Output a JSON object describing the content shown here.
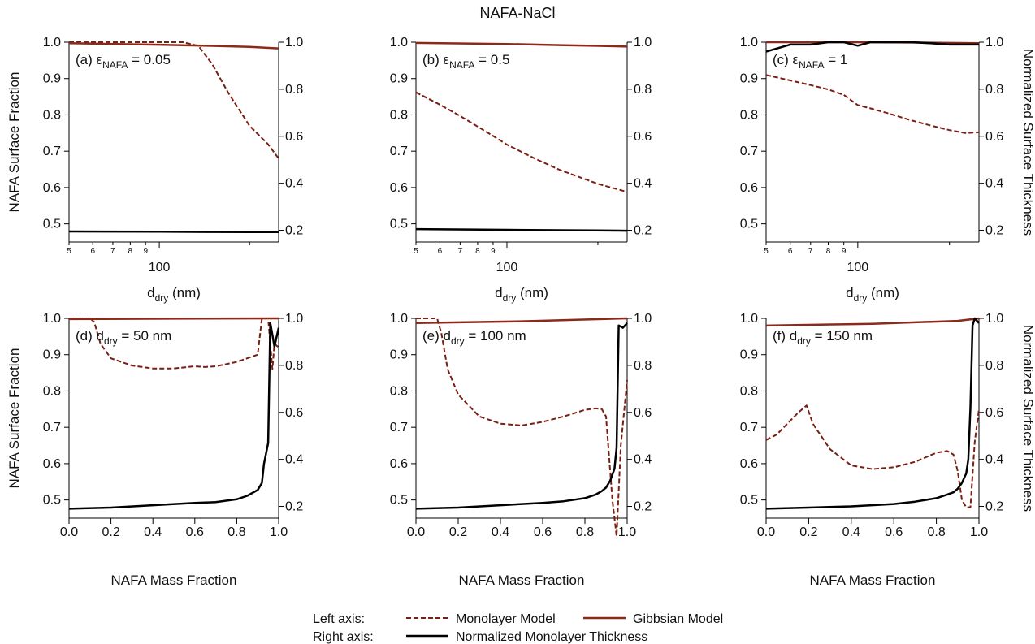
{
  "figure_title": "NAFA-NaCl",
  "colors": {
    "monolayer": "#7a1f12",
    "gibbsian": "#8b2a1a",
    "thickness": "#000000"
  },
  "legend": {
    "left_axis_label": "Left axis:",
    "right_axis_label": "Right axis:",
    "monolayer": "Monolayer Model",
    "gibbsian": "Gibbsian Model",
    "thickness": "Normalized Monolayer Thickness"
  },
  "chart_data": [
    {
      "id": "a",
      "type": "line",
      "label_prefix": "(a) ε",
      "label_sub": "NAFA",
      "label_suffix": " = 0.05",
      "xlabel_main": "d",
      "xlabel_sub": "dry",
      "xlabel_suffix": " (nm)",
      "ylabel_left": "NAFA Surface Fraction",
      "ylabel_right": "",
      "xscale": "log",
      "xlim": [
        50,
        250
      ],
      "xticks_major": [
        {
          "v": 100,
          "label": "100"
        }
      ],
      "xticks_minor": [
        {
          "v": 50,
          "label": "5"
        },
        {
          "v": 60,
          "label": "6"
        },
        {
          "v": 70,
          "label": "7"
        },
        {
          "v": 80,
          "label": "8"
        },
        {
          "v": 90,
          "label": "9"
        },
        {
          "v": 200,
          "label": ""
        }
      ],
      "ylim_left": [
        0.45,
        1.0
      ],
      "yticks_left": [
        "0.5",
        "0.6",
        "0.7",
        "0.8",
        "0.9",
        "1.0"
      ],
      "ylim_right": [
        0.15,
        1.0
      ],
      "yticks_right": [
        "0.2",
        "0.4",
        "0.6",
        "0.8",
        "1.0"
      ],
      "series": [
        {
          "key": "monolayer",
          "axis": "left",
          "style": "dashed",
          "x": [
            50,
            80,
            120,
            135,
            150,
            170,
            200,
            230,
            250
          ],
          "y": [
            1.0,
            1.0,
            1.0,
            0.99,
            0.94,
            0.86,
            0.77,
            0.72,
            0.68
          ]
        },
        {
          "key": "gibbsian",
          "axis": "left",
          "style": "solid",
          "x": [
            50,
            100,
            150,
            200,
            250
          ],
          "y": [
            0.997,
            0.993,
            0.99,
            0.987,
            0.983
          ]
        },
        {
          "key": "thickness",
          "axis": "right",
          "style": "solid",
          "x": [
            50,
            100,
            150,
            200,
            250
          ],
          "y": [
            0.195,
            0.194,
            0.193,
            0.192,
            0.192
          ]
        }
      ]
    },
    {
      "id": "b",
      "type": "line",
      "label_prefix": "(b) ε",
      "label_sub": "NAFA",
      "label_suffix": " = 0.5",
      "xlabel_main": "d",
      "xlabel_sub": "dry",
      "xlabel_suffix": " (nm)",
      "ylabel_left": "",
      "ylabel_right": "",
      "xscale": "log",
      "xlim": [
        50,
        250
      ],
      "xticks_major": [
        {
          "v": 100,
          "label": "100"
        }
      ],
      "xticks_minor": [
        {
          "v": 50,
          "label": "5"
        },
        {
          "v": 60,
          "label": "6"
        },
        {
          "v": 70,
          "label": "7"
        },
        {
          "v": 80,
          "label": "8"
        },
        {
          "v": 90,
          "label": "9"
        },
        {
          "v": 200,
          "label": ""
        }
      ],
      "ylim_left": [
        0.45,
        1.0
      ],
      "yticks_left": [
        "0.5",
        "0.6",
        "0.7",
        "0.8",
        "0.9",
        "1.0"
      ],
      "ylim_right": [
        0.15,
        1.0
      ],
      "yticks_right": [
        "0.2",
        "0.4",
        "0.6",
        "0.8",
        "1.0"
      ],
      "series": [
        {
          "key": "monolayer",
          "axis": "left",
          "style": "dashed",
          "x": [
            50,
            60,
            70,
            80,
            90,
            100,
            125,
            150,
            200,
            250
          ],
          "y": [
            0.862,
            0.828,
            0.797,
            0.768,
            0.742,
            0.718,
            0.678,
            0.648,
            0.61,
            0.588
          ]
        },
        {
          "key": "gibbsian",
          "axis": "left",
          "style": "solid",
          "x": [
            50,
            100,
            150,
            200,
            250
          ],
          "y": [
            0.998,
            0.995,
            0.992,
            0.99,
            0.988
          ]
        },
        {
          "key": "thickness",
          "axis": "right",
          "style": "solid",
          "x": [
            50,
            100,
            150,
            200,
            250
          ],
          "y": [
            0.205,
            0.202,
            0.2,
            0.199,
            0.198
          ]
        }
      ]
    },
    {
      "id": "c",
      "type": "line",
      "label_prefix": "(c) ε",
      "label_sub": "NAFA",
      "label_suffix": " = 1",
      "xlabel_main": "d",
      "xlabel_sub": "dry",
      "xlabel_suffix": " (nm)",
      "ylabel_left": "",
      "ylabel_right": "Normalized Surface Thickness",
      "xscale": "log",
      "xlim": [
        50,
        250
      ],
      "xticks_major": [
        {
          "v": 100,
          "label": "100"
        }
      ],
      "xticks_minor": [
        {
          "v": 50,
          "label": "5"
        },
        {
          "v": 60,
          "label": "6"
        },
        {
          "v": 70,
          "label": "7"
        },
        {
          "v": 80,
          "label": "8"
        },
        {
          "v": 90,
          "label": "9"
        },
        {
          "v": 200,
          "label": ""
        }
      ],
      "ylim_left": [
        0.45,
        1.0
      ],
      "yticks_left": [
        "0.5",
        "0.6",
        "0.7",
        "0.8",
        "0.9",
        "1.0"
      ],
      "ylim_right": [
        0.15,
        1.0
      ],
      "yticks_right": [
        "0.2",
        "0.4",
        "0.6",
        "0.8",
        "1.0"
      ],
      "series": [
        {
          "key": "monolayer",
          "axis": "left",
          "style": "dashed",
          "x": [
            50,
            60,
            70,
            80,
            90,
            100,
            110,
            125,
            150,
            175,
            200,
            225,
            250
          ],
          "y": [
            0.91,
            0.895,
            0.882,
            0.87,
            0.855,
            0.827,
            0.818,
            0.805,
            0.785,
            0.77,
            0.758,
            0.75,
            0.752
          ]
        },
        {
          "key": "gibbsian",
          "axis": "left",
          "style": "solid",
          "x": [
            50,
            100,
            150,
            200,
            250
          ],
          "y": [
            1.0,
            1.0,
            0.999,
            0.998,
            0.997
          ]
        },
        {
          "key": "thickness",
          "axis": "right",
          "style": "solid",
          "x": [
            50,
            60,
            70,
            80,
            90,
            100,
            110,
            125,
            150,
            175,
            200,
            225,
            250
          ],
          "y": [
            0.96,
            0.99,
            0.99,
            1.0,
            1.0,
            0.985,
            1.0,
            1.0,
            1.0,
            0.995,
            0.99,
            0.99,
            0.99
          ]
        }
      ]
    },
    {
      "id": "d",
      "type": "line",
      "label_prefix": "(d) d",
      "label_sub": "dry",
      "label_suffix": " = 50 nm",
      "xlabel_main": "NAFA Mass Fraction",
      "xlabel_sub": "",
      "xlabel_suffix": "",
      "ylabel_left": "NAFA Surface Fraction",
      "ylabel_right": "",
      "xscale": "linear",
      "xlim": [
        0,
        1
      ],
      "xticks_major": [
        {
          "v": 0,
          "label": "0.0"
        },
        {
          "v": 0.2,
          "label": "0.2"
        },
        {
          "v": 0.4,
          "label": "0.4"
        },
        {
          "v": 0.6,
          "label": "0.6"
        },
        {
          "v": 0.8,
          "label": "0.8"
        },
        {
          "v": 1.0,
          "label": "1.0"
        }
      ],
      "xticks_minor": [],
      "ylim_left": [
        0.45,
        1.0
      ],
      "yticks_left": [
        "0.5",
        "0.6",
        "0.7",
        "0.8",
        "0.9",
        "1.0"
      ],
      "ylim_right": [
        0.15,
        1.0
      ],
      "yticks_right": [
        "0.2",
        "0.4",
        "0.6",
        "0.8",
        "1.0"
      ],
      "series": [
        {
          "key": "monolayer",
          "axis": "left",
          "style": "dashed",
          "x": [
            0.0,
            0.1,
            0.12,
            0.15,
            0.2,
            0.3,
            0.4,
            0.5,
            0.6,
            0.65,
            0.7,
            0.8,
            0.85,
            0.9,
            0.92,
            0.95,
            0.97,
            0.98,
            1.0
          ],
          "y": [
            1.0,
            1.0,
            0.99,
            0.93,
            0.89,
            0.87,
            0.862,
            0.862,
            0.868,
            0.866,
            0.868,
            0.88,
            0.89,
            0.9,
            1.0,
            1.0,
            0.86,
            0.93,
            0.92
          ]
        },
        {
          "key": "gibbsian",
          "axis": "left",
          "style": "solid",
          "x": [
            0.0,
            0.5,
            1.0
          ],
          "y": [
            0.998,
            0.999,
            1.0
          ]
        },
        {
          "key": "thickness",
          "axis": "right",
          "style": "solid",
          "x": [
            0.0,
            0.2,
            0.4,
            0.6,
            0.7,
            0.8,
            0.85,
            0.9,
            0.92,
            0.93,
            0.95,
            0.96,
            0.97,
            0.98,
            1.0
          ],
          "y": [
            0.19,
            0.195,
            0.205,
            0.215,
            0.218,
            0.23,
            0.245,
            0.27,
            0.3,
            0.38,
            0.47,
            0.98,
            0.93,
            0.88,
            0.96
          ]
        }
      ]
    },
    {
      "id": "e",
      "type": "line",
      "label_prefix": "(e) d",
      "label_sub": "dry",
      "label_suffix": " = 100 nm",
      "xlabel_main": "NAFA Mass Fraction",
      "xlabel_sub": "",
      "xlabel_suffix": "",
      "ylabel_left": "",
      "ylabel_right": "",
      "xscale": "linear",
      "xlim": [
        0,
        1
      ],
      "xticks_major": [
        {
          "v": 0,
          "label": "0.0"
        },
        {
          "v": 0.2,
          "label": "0.2"
        },
        {
          "v": 0.4,
          "label": "0.4"
        },
        {
          "v": 0.6,
          "label": "0.6"
        },
        {
          "v": 0.8,
          "label": "0.8"
        },
        {
          "v": 1.0,
          "label": "1.0"
        }
      ],
      "xticks_minor": [],
      "ylim_left": [
        0.45,
        1.0
      ],
      "yticks_left": [
        "0.5",
        "0.6",
        "0.7",
        "0.8",
        "0.9",
        "1.0"
      ],
      "ylim_right": [
        0.15,
        1.0
      ],
      "yticks_right": [
        "0.2",
        "0.4",
        "0.6",
        "0.8",
        "1.0"
      ],
      "series": [
        {
          "key": "monolayer",
          "axis": "left",
          "style": "dashed",
          "x": [
            0.0,
            0.1,
            0.12,
            0.15,
            0.2,
            0.3,
            0.4,
            0.5,
            0.6,
            0.7,
            0.8,
            0.85,
            0.88,
            0.9,
            0.93,
            0.95,
            0.97,
            1.0
          ],
          "y": [
            1.0,
            1.0,
            0.96,
            0.86,
            0.79,
            0.73,
            0.71,
            0.705,
            0.715,
            0.73,
            0.748,
            0.752,
            0.75,
            0.73,
            0.5,
            0.4,
            0.65,
            0.83
          ]
        },
        {
          "key": "gibbsian",
          "axis": "left",
          "style": "solid",
          "x": [
            0.0,
            0.5,
            1.0
          ],
          "y": [
            0.987,
            0.992,
            1.0
          ]
        },
        {
          "key": "thickness",
          "axis": "right",
          "style": "solid",
          "x": [
            0.0,
            0.2,
            0.4,
            0.6,
            0.7,
            0.8,
            0.85,
            0.88,
            0.9,
            0.92,
            0.94,
            0.95,
            0.96,
            0.98,
            1.0
          ],
          "y": [
            0.19,
            0.195,
            0.205,
            0.215,
            0.222,
            0.235,
            0.25,
            0.265,
            0.28,
            0.31,
            0.36,
            0.45,
            0.97,
            0.96,
            0.98
          ]
        }
      ]
    },
    {
      "id": "f",
      "type": "line",
      "label_prefix": "(f) d",
      "label_sub": "dry",
      "label_suffix": " = 150 nm",
      "xlabel_main": "NAFA Mass Fraction",
      "xlabel_sub": "",
      "xlabel_suffix": "",
      "ylabel_left": "",
      "ylabel_right": "Normalized Surface Thickness",
      "xscale": "linear",
      "xlim": [
        0,
        1
      ],
      "xticks_major": [
        {
          "v": 0,
          "label": "0.0"
        },
        {
          "v": 0.2,
          "label": "0.2"
        },
        {
          "v": 0.4,
          "label": "0.4"
        },
        {
          "v": 0.6,
          "label": "0.6"
        },
        {
          "v": 0.8,
          "label": "0.8"
        },
        {
          "v": 1.0,
          "label": "1.0"
        }
      ],
      "xticks_minor": [],
      "ylim_left": [
        0.45,
        1.0
      ],
      "yticks_left": [
        "0.5",
        "0.6",
        "0.7",
        "0.8",
        "0.9",
        "1.0"
      ],
      "ylim_right": [
        0.15,
        1.0
      ],
      "yticks_right": [
        "0.2",
        "0.4",
        "0.6",
        "0.8",
        "1.0"
      ],
      "series": [
        {
          "key": "monolayer",
          "axis": "left",
          "style": "dashed",
          "x": [
            0.0,
            0.05,
            0.1,
            0.15,
            0.19,
            0.22,
            0.3,
            0.4,
            0.5,
            0.6,
            0.7,
            0.8,
            0.85,
            0.88,
            0.9,
            0.92,
            0.94,
            0.96,
            0.98,
            1.0
          ],
          "y": [
            0.665,
            0.68,
            0.71,
            0.74,
            0.76,
            0.71,
            0.64,
            0.595,
            0.585,
            0.59,
            0.605,
            0.63,
            0.635,
            0.625,
            0.58,
            0.5,
            0.48,
            0.48,
            0.66,
            0.75
          ]
        },
        {
          "key": "gibbsian",
          "axis": "left",
          "style": "solid",
          "x": [
            0.0,
            0.5,
            0.9,
            1.0
          ],
          "y": [
            0.98,
            0.985,
            0.993,
            1.0
          ]
        },
        {
          "key": "thickness",
          "axis": "right",
          "style": "solid",
          "x": [
            0.0,
            0.2,
            0.4,
            0.6,
            0.7,
            0.8,
            0.85,
            0.88,
            0.9,
            0.92,
            0.94,
            0.95,
            0.96,
            0.97,
            0.98,
            1.0
          ],
          "y": [
            0.19,
            0.195,
            0.2,
            0.21,
            0.22,
            0.235,
            0.25,
            0.26,
            0.275,
            0.3,
            0.34,
            0.4,
            0.62,
            0.97,
            1.0,
            0.98
          ]
        }
      ]
    }
  ]
}
